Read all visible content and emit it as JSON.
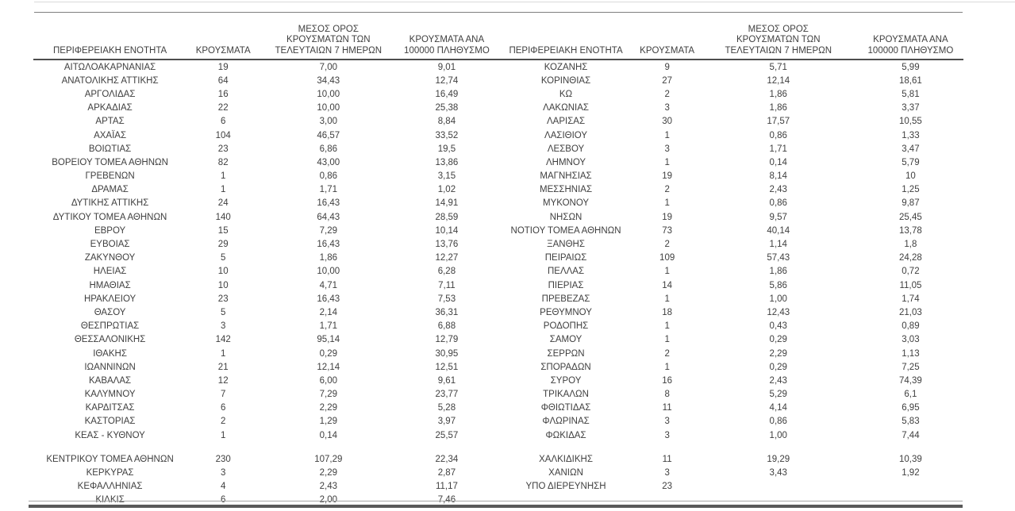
{
  "table": {
    "column_headers": [
      {
        "id": "region",
        "lines": [
          "ΠΕΡΙΦΕΡΕΙΑΚΗ ΕΝΟΤΗΤΑ"
        ]
      },
      {
        "id": "cases",
        "lines": [
          "ΚΡΟΥΣΜΑΤΑ"
        ]
      },
      {
        "id": "avg7",
        "lines": [
          "ΜΕΣΟΣ ΟΡΟΣ",
          "ΚΡΟΥΣΜΑΤΩΝ ΤΩΝ",
          "ΤΕΛΕΥΤΑΙΩΝ 7 ΗΜΕΡΩΝ"
        ]
      },
      {
        "id": "per100k",
        "lines": [
          "ΚΡΟΥΣΜΑΤΑ ΑΝΑ",
          "100000 ΠΛΗΘΥΣΜΟ"
        ]
      }
    ],
    "left_rows": [
      [
        "ΑΙΤΩΛΟΑΚΑΡΝΑΝΙΑΣ",
        "19",
        "7,00",
        "9,01"
      ],
      [
        "ΑΝΑΤΟΛΙΚΗΣ ΑΤΤΙΚΗΣ",
        "64",
        "34,43",
        "12,74"
      ],
      [
        "ΑΡΓΟΛΙΔΑΣ",
        "16",
        "10,00",
        "16,49"
      ],
      [
        "ΑΡΚΑΔΙΑΣ",
        "22",
        "10,00",
        "25,38"
      ],
      [
        "ΑΡΤΑΣ",
        "6",
        "3,00",
        "8,84"
      ],
      [
        "ΑΧΑΪΑΣ",
        "104",
        "46,57",
        "33,52"
      ],
      [
        "ΒΟΙΩΤΙΑΣ",
        "23",
        "6,86",
        "19,5"
      ],
      [
        "ΒΟΡΕΙΟΥ ΤΟΜΕΑ ΑΘΗΝΩΝ",
        "82",
        "43,00",
        "13,86"
      ],
      [
        "ΓΡΕΒΕΝΩΝ",
        "1",
        "0,86",
        "3,15"
      ],
      [
        "ΔΡΑΜΑΣ",
        "1",
        "1,71",
        "1,02"
      ],
      [
        "ΔΥΤΙΚΗΣ ΑΤΤΙΚΗΣ",
        "24",
        "16,43",
        "14,91"
      ],
      [
        "ΔΥΤΙΚΟΥ ΤΟΜΕΑ ΑΘΗΝΩΝ",
        "140",
        "64,43",
        "28,59"
      ],
      [
        "ΕΒΡΟΥ",
        "15",
        "7,29",
        "10,14"
      ],
      [
        "ΕΥΒΟΙΑΣ",
        "29",
        "16,43",
        "13,76"
      ],
      [
        "ΖΑΚΥΝΘΟΥ",
        "5",
        "1,86",
        "12,27"
      ],
      [
        "ΗΛΕΙΑΣ",
        "10",
        "10,00",
        "6,28"
      ],
      [
        "ΗΜΑΘΙΑΣ",
        "10",
        "4,71",
        "7,11"
      ],
      [
        "ΗΡΑΚΛΕΙΟΥ",
        "23",
        "16,43",
        "7,53"
      ],
      [
        "ΘΑΣΟΥ",
        "5",
        "2,14",
        "36,31"
      ],
      [
        "ΘΕΣΠΡΩΤΙΑΣ",
        "3",
        "1,71",
        "6,88"
      ],
      [
        "ΘΕΣΣΑΛΟΝΙΚΗΣ",
        "142",
        "95,14",
        "12,79"
      ],
      [
        "ΙΘΑΚΗΣ",
        "1",
        "0,29",
        "30,95"
      ],
      [
        "ΙΩΑΝΝΙΝΩΝ",
        "21",
        "12,14",
        "12,51"
      ],
      [
        "ΚΑΒΑΛΑΣ",
        "12",
        "6,00",
        "9,61"
      ],
      [
        "ΚΑΛΥΜΝΟΥ",
        "7",
        "7,29",
        "23,77"
      ],
      [
        "ΚΑΡΔΙΤΣΑΣ",
        "6",
        "2,29",
        "5,28"
      ],
      [
        "ΚΑΣΤΟΡΙΑΣ",
        "2",
        "1,29",
        "3,97"
      ],
      [
        "ΚΕΑΣ - ΚΥΘΝΟΥ",
        "1",
        "0,14",
        "25,57"
      ],
      null,
      [
        "ΚΕΝΤΡΙΚΟΥ ΤΟΜΕΑ ΑΘΗΝΩΝ",
        "230",
        "107,29",
        "22,34"
      ],
      [
        "ΚΕΡΚΥΡΑΣ",
        "3",
        "2,29",
        "2,87"
      ],
      [
        "ΚΕΦΑΛΛΗΝΙΑΣ",
        "4",
        "2,43",
        "11,17"
      ],
      [
        "ΚΙΛΚΙΣ",
        "6",
        "2,00",
        "7,46"
      ]
    ],
    "right_rows": [
      [
        "ΚΟΖΑΝΗΣ",
        "9",
        "5,71",
        "5,99"
      ],
      [
        "ΚΟΡΙΝΘΙΑΣ",
        "27",
        "12,14",
        "18,61"
      ],
      [
        "ΚΩ",
        "2",
        "1,86",
        "5,81"
      ],
      [
        "ΛΑΚΩΝΙΑΣ",
        "3",
        "1,86",
        "3,37"
      ],
      [
        "ΛΑΡΙΣΑΣ",
        "30",
        "17,57",
        "10,55"
      ],
      [
        "ΛΑΣΙΘΙΟΥ",
        "1",
        "0,86",
        "1,33"
      ],
      [
        "ΛΕΣΒΟΥ",
        "3",
        "1,71",
        "3,47"
      ],
      [
        "ΛΗΜΝΟΥ",
        "1",
        "0,14",
        "5,79"
      ],
      [
        "ΜΑΓΝΗΣΙΑΣ",
        "19",
        "8,14",
        "10"
      ],
      [
        "ΜΕΣΣΗΝΙΑΣ",
        "2",
        "2,43",
        "1,25"
      ],
      [
        "ΜΥΚΟΝΟΥ",
        "1",
        "0,86",
        "9,87"
      ],
      [
        "ΝΗΣΩΝ",
        "19",
        "9,57",
        "25,45"
      ],
      [
        "ΝΟΤΙΟΥ ΤΟΜΕΑ ΑΘΗΝΩΝ",
        "73",
        "40,14",
        "13,78"
      ],
      [
        "ΞΑΝΘΗΣ",
        "2",
        "1,14",
        "1,8"
      ],
      [
        "ΠΕΙΡΑΙΩΣ",
        "109",
        "57,43",
        "24,28"
      ],
      [
        "ΠΕΛΛΑΣ",
        "1",
        "1,86",
        "0,72"
      ],
      [
        "ΠΙΕΡΙΑΣ",
        "14",
        "5,86",
        "11,05"
      ],
      [
        "ΠΡΕΒΕΖΑΣ",
        "1",
        "1,00",
        "1,74"
      ],
      [
        "ΡΕΘΥΜΝΟΥ",
        "18",
        "12,43",
        "21,03"
      ],
      [
        "ΡΟΔΟΠΗΣ",
        "1",
        "0,43",
        "0,89"
      ],
      [
        "ΣΑΜΟΥ",
        "1",
        "0,29",
        "3,03"
      ],
      [
        "ΣΕΡΡΩΝ",
        "2",
        "2,29",
        "1,13"
      ],
      [
        "ΣΠΟΡΑΔΩΝ",
        "1",
        "0,29",
        "7,25"
      ],
      [
        "ΣΥΡΟΥ",
        "16",
        "2,43",
        "74,39"
      ],
      [
        "ΤΡΙΚΑΛΩΝ",
        "8",
        "5,29",
        "6,1"
      ],
      [
        "ΦΘΙΩΤΙΔΑΣ",
        "11",
        "4,14",
        "6,95"
      ],
      [
        "ΦΛΩΡΙΝΑΣ",
        "3",
        "0,86",
        "5,83"
      ],
      [
        "ΦΩΚΙΔΑΣ",
        "3",
        "1,00",
        "7,44"
      ],
      null,
      [
        "ΧΑΛΚΙΔΙΚΗΣ",
        "11",
        "19,29",
        "10,39"
      ],
      [
        "ΧΑΝΙΩΝ",
        "3",
        "3,43",
        "1,92"
      ],
      [
        "ΥΠΟ ΔΙΕΡΕΥΝΗΣΗ",
        "23",
        "",
        ""
      ],
      null
    ],
    "colors": {
      "text": "#3f3f3f",
      "header_rule": "#4d4d4d",
      "top_light_rule": "#d9d9d9",
      "top_dark_rule": "#7f7f7f",
      "bottom_thick_rule": "#595959"
    }
  }
}
